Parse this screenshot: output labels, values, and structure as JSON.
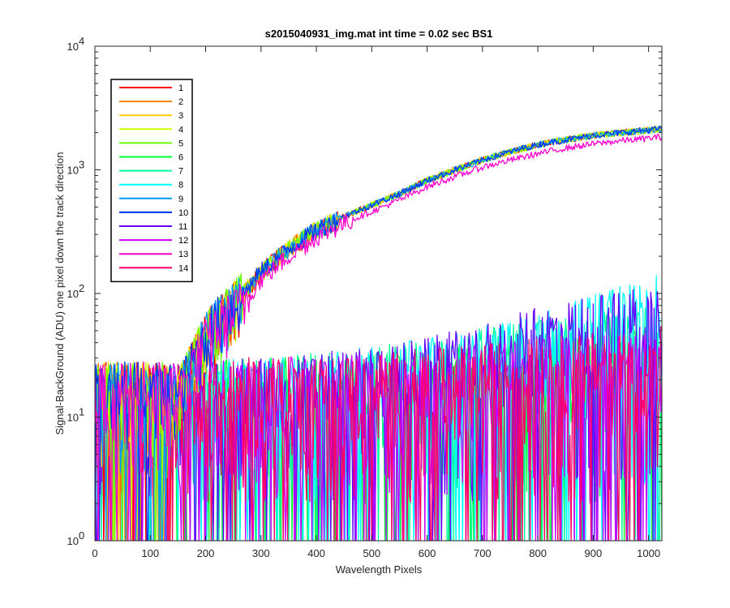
{
  "chart_data": {
    "type": "line",
    "title": "s2015040931_img.mat int time = 0.02 sec   BS1",
    "xlabel": "Wavelength Pixels",
    "ylabel": "Signal-BackGround (ADU) one pixel down the track direction",
    "xlim": [
      0,
      1024
    ],
    "ylim": [
      1,
      10000
    ],
    "yscale": "log",
    "xticks": [
      "0",
      "100",
      "200",
      "300",
      "400",
      "500",
      "600",
      "700",
      "800",
      "900",
      "1000"
    ],
    "yticks": [
      {
        "base": "10",
        "exp": "0"
      },
      {
        "base": "10",
        "exp": "1"
      },
      {
        "base": "10",
        "exp": "2"
      },
      {
        "base": "10",
        "exp": "3"
      },
      {
        "base": "10",
        "exp": "4"
      }
    ],
    "grid": false,
    "legend_position": "top-left",
    "series": [
      {
        "name": "1",
        "color": "#ff0000",
        "group": "upper",
        "x": [
          0,
          150,
          180,
          200,
          220,
          250,
          300,
          350,
          400,
          450,
          500,
          550,
          600,
          650,
          700,
          750,
          800,
          850,
          900,
          950,
          1000,
          1023
        ],
        "y": [
          5,
          15,
          30,
          45,
          60,
          80,
          150,
          230,
          330,
          420,
          520,
          640,
          820,
          1000,
          1200,
          1400,
          1600,
          1750,
          1900,
          2000,
          2100,
          2150
        ]
      },
      {
        "name": "2",
        "color": "#ff7f00",
        "group": "upper",
        "x": [
          0,
          150,
          180,
          200,
          220,
          250,
          300,
          350,
          400,
          450,
          500,
          550,
          600,
          650,
          700,
          750,
          800,
          850,
          900,
          950,
          1000,
          1023
        ],
        "y": [
          5,
          15,
          30,
          45,
          60,
          80,
          150,
          230,
          330,
          420,
          520,
          640,
          820,
          1000,
          1200,
          1400,
          1600,
          1750,
          1900,
          2000,
          2100,
          2150
        ]
      },
      {
        "name": "3",
        "color": "#ffcc00",
        "group": "upper",
        "x": [
          0,
          150,
          180,
          200,
          220,
          250,
          300,
          350,
          400,
          450,
          500,
          550,
          600,
          650,
          700,
          750,
          800,
          850,
          900,
          950,
          1000,
          1023
        ],
        "y": [
          5,
          15,
          30,
          45,
          60,
          80,
          150,
          230,
          330,
          420,
          520,
          640,
          820,
          1000,
          1200,
          1400,
          1600,
          1750,
          1900,
          2000,
          2100,
          2150
        ]
      },
      {
        "name": "4",
        "color": "#ccff00",
        "group": "upper",
        "x": [
          0,
          150,
          180,
          200,
          220,
          250,
          300,
          350,
          400,
          450,
          500,
          550,
          600,
          650,
          700,
          750,
          800,
          850,
          900,
          950,
          1000,
          1023
        ],
        "y": [
          5,
          15,
          30,
          45,
          60,
          80,
          150,
          230,
          330,
          420,
          520,
          640,
          820,
          1000,
          1200,
          1400,
          1600,
          1750,
          1900,
          2000,
          2100,
          2150
        ]
      },
      {
        "name": "5",
        "color": "#66ff00",
        "group": "upper",
        "x": [
          0,
          150,
          180,
          200,
          220,
          250,
          300,
          350,
          400,
          450,
          500,
          550,
          600,
          650,
          700,
          750,
          800,
          850,
          900,
          950,
          1000,
          1023
        ],
        "y": [
          5,
          15,
          30,
          45,
          60,
          80,
          150,
          230,
          330,
          420,
          520,
          640,
          820,
          1000,
          1200,
          1400,
          1600,
          1750,
          1900,
          2000,
          2100,
          2150
        ]
      },
      {
        "name": "6",
        "color": "#00ff33",
        "group": "lower",
        "x": [
          0,
          100,
          200,
          300,
          400,
          500,
          600,
          700,
          800,
          900,
          1000,
          1023
        ],
        "y": [
          10,
          12,
          13,
          14,
          14,
          15,
          16,
          18,
          20,
          22,
          24,
          25
        ]
      },
      {
        "name": "7",
        "color": "#00ff99",
        "group": "lower",
        "x": [
          0,
          100,
          200,
          300,
          400,
          500,
          600,
          700,
          800,
          900,
          1000,
          1023
        ],
        "y": [
          10,
          12,
          13,
          14,
          15,
          17,
          20,
          24,
          28,
          32,
          36,
          38
        ]
      },
      {
        "name": "8",
        "color": "#00ffff",
        "group": "lower",
        "x": [
          0,
          100,
          200,
          300,
          400,
          500,
          600,
          700,
          800,
          900,
          1000,
          1023
        ],
        "y": [
          10,
          12,
          13,
          14,
          15,
          17,
          20,
          25,
          32,
          45,
          60,
          70
        ]
      },
      {
        "name": "9",
        "color": "#0099ff",
        "group": "upper",
        "x": [
          0,
          150,
          180,
          200,
          220,
          250,
          300,
          350,
          400,
          450,
          500,
          550,
          600,
          650,
          700,
          750,
          800,
          850,
          900,
          950,
          1000,
          1023
        ],
        "y": [
          5,
          15,
          30,
          45,
          60,
          80,
          150,
          230,
          330,
          420,
          520,
          640,
          820,
          1000,
          1200,
          1400,
          1600,
          1750,
          1900,
          2000,
          2100,
          2150
        ]
      },
      {
        "name": "10",
        "color": "#0033ff",
        "group": "upper",
        "x": [
          0,
          150,
          180,
          200,
          220,
          250,
          300,
          350,
          400,
          450,
          500,
          550,
          600,
          650,
          700,
          750,
          800,
          850,
          900,
          950,
          1000,
          1023
        ],
        "y": [
          5,
          15,
          30,
          45,
          60,
          80,
          150,
          230,
          330,
          420,
          520,
          640,
          820,
          1000,
          1200,
          1400,
          1600,
          1750,
          1900,
          2000,
          2100,
          2150
        ]
      },
      {
        "name": "11",
        "color": "#6600ff",
        "group": "lower",
        "x": [
          0,
          100,
          200,
          300,
          400,
          500,
          600,
          700,
          800,
          900,
          1000,
          1023
        ],
        "y": [
          10,
          12,
          13,
          14,
          15,
          17,
          20,
          26,
          35,
          45,
          55,
          60
        ]
      },
      {
        "name": "12",
        "color": "#cc00ff",
        "group": "lower",
        "x": [
          0,
          100,
          200,
          300,
          400,
          500,
          600,
          700,
          800,
          900,
          1000,
          1023
        ],
        "y": [
          10,
          12,
          13,
          14,
          14,
          15,
          16,
          18,
          20,
          21,
          22,
          22
        ]
      },
      {
        "name": "13",
        "color": "#ff00cc",
        "group": "upper",
        "x": [
          0,
          150,
          180,
          200,
          220,
          250,
          300,
          350,
          400,
          450,
          500,
          550,
          600,
          650,
          700,
          750,
          800,
          850,
          900,
          950,
          1000,
          1023
        ],
        "y": [
          5,
          14,
          28,
          40,
          55,
          70,
          130,
          200,
          290,
          370,
          460,
          570,
          730,
          880,
          1050,
          1200,
          1350,
          1500,
          1620,
          1720,
          1800,
          1850
        ]
      },
      {
        "name": "14",
        "color": "#ff0066",
        "group": "lower",
        "x": [
          0,
          100,
          200,
          300,
          400,
          500,
          600,
          700,
          800,
          900,
          1000,
          1023
        ],
        "y": [
          10,
          12,
          13,
          14,
          14,
          15,
          16,
          18,
          20,
          22,
          25,
          26
        ]
      }
    ]
  }
}
